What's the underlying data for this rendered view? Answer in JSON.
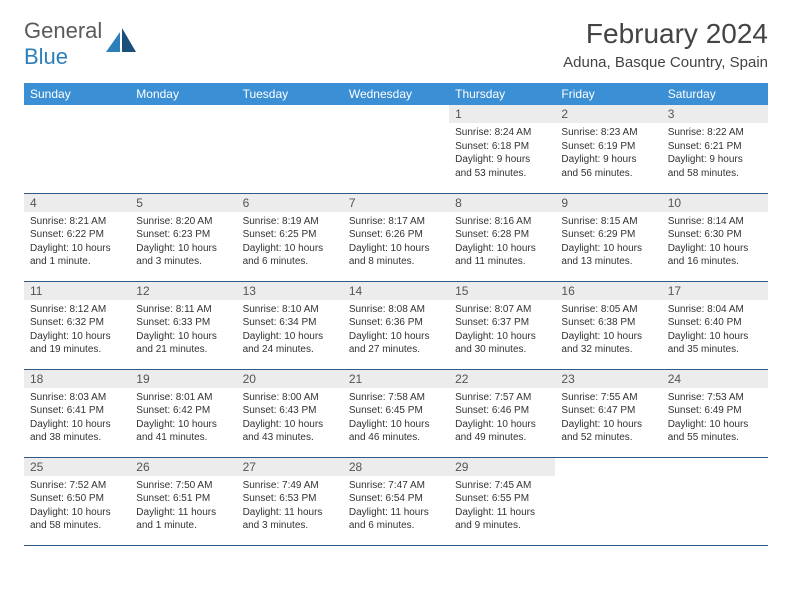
{
  "logo": {
    "text_gray": "General",
    "text_blue": "Blue"
  },
  "header": {
    "month_title": "February 2024",
    "location": "Aduna, Basque Country, Spain"
  },
  "colors": {
    "header_bg": "#3b8fd4",
    "header_text": "#ffffff",
    "daynum_bg": "#ececec",
    "rule": "#2c5a8a",
    "logo_blue": "#2c7fb8",
    "logo_gray": "#5a5a5a"
  },
  "dow": [
    "Sunday",
    "Monday",
    "Tuesday",
    "Wednesday",
    "Thursday",
    "Friday",
    "Saturday"
  ],
  "weeks": [
    [
      null,
      null,
      null,
      null,
      {
        "n": "1",
        "sr": "8:24 AM",
        "ss": "6:18 PM",
        "dl": "9 hours and 53 minutes."
      },
      {
        "n": "2",
        "sr": "8:23 AM",
        "ss": "6:19 PM",
        "dl": "9 hours and 56 minutes."
      },
      {
        "n": "3",
        "sr": "8:22 AM",
        "ss": "6:21 PM",
        "dl": "9 hours and 58 minutes."
      }
    ],
    [
      {
        "n": "4",
        "sr": "8:21 AM",
        "ss": "6:22 PM",
        "dl": "10 hours and 1 minute."
      },
      {
        "n": "5",
        "sr": "8:20 AM",
        "ss": "6:23 PM",
        "dl": "10 hours and 3 minutes."
      },
      {
        "n": "6",
        "sr": "8:19 AM",
        "ss": "6:25 PM",
        "dl": "10 hours and 6 minutes."
      },
      {
        "n": "7",
        "sr": "8:17 AM",
        "ss": "6:26 PM",
        "dl": "10 hours and 8 minutes."
      },
      {
        "n": "8",
        "sr": "8:16 AM",
        "ss": "6:28 PM",
        "dl": "10 hours and 11 minutes."
      },
      {
        "n": "9",
        "sr": "8:15 AM",
        "ss": "6:29 PM",
        "dl": "10 hours and 13 minutes."
      },
      {
        "n": "10",
        "sr": "8:14 AM",
        "ss": "6:30 PM",
        "dl": "10 hours and 16 minutes."
      }
    ],
    [
      {
        "n": "11",
        "sr": "8:12 AM",
        "ss": "6:32 PM",
        "dl": "10 hours and 19 minutes."
      },
      {
        "n": "12",
        "sr": "8:11 AM",
        "ss": "6:33 PM",
        "dl": "10 hours and 21 minutes."
      },
      {
        "n": "13",
        "sr": "8:10 AM",
        "ss": "6:34 PM",
        "dl": "10 hours and 24 minutes."
      },
      {
        "n": "14",
        "sr": "8:08 AM",
        "ss": "6:36 PM",
        "dl": "10 hours and 27 minutes."
      },
      {
        "n": "15",
        "sr": "8:07 AM",
        "ss": "6:37 PM",
        "dl": "10 hours and 30 minutes."
      },
      {
        "n": "16",
        "sr": "8:05 AM",
        "ss": "6:38 PM",
        "dl": "10 hours and 32 minutes."
      },
      {
        "n": "17",
        "sr": "8:04 AM",
        "ss": "6:40 PM",
        "dl": "10 hours and 35 minutes."
      }
    ],
    [
      {
        "n": "18",
        "sr": "8:03 AM",
        "ss": "6:41 PM",
        "dl": "10 hours and 38 minutes."
      },
      {
        "n": "19",
        "sr": "8:01 AM",
        "ss": "6:42 PM",
        "dl": "10 hours and 41 minutes."
      },
      {
        "n": "20",
        "sr": "8:00 AM",
        "ss": "6:43 PM",
        "dl": "10 hours and 43 minutes."
      },
      {
        "n": "21",
        "sr": "7:58 AM",
        "ss": "6:45 PM",
        "dl": "10 hours and 46 minutes."
      },
      {
        "n": "22",
        "sr": "7:57 AM",
        "ss": "6:46 PM",
        "dl": "10 hours and 49 minutes."
      },
      {
        "n": "23",
        "sr": "7:55 AM",
        "ss": "6:47 PM",
        "dl": "10 hours and 52 minutes."
      },
      {
        "n": "24",
        "sr": "7:53 AM",
        "ss": "6:49 PM",
        "dl": "10 hours and 55 minutes."
      }
    ],
    [
      {
        "n": "25",
        "sr": "7:52 AM",
        "ss": "6:50 PM",
        "dl": "10 hours and 58 minutes."
      },
      {
        "n": "26",
        "sr": "7:50 AM",
        "ss": "6:51 PM",
        "dl": "11 hours and 1 minute."
      },
      {
        "n": "27",
        "sr": "7:49 AM",
        "ss": "6:53 PM",
        "dl": "11 hours and 3 minutes."
      },
      {
        "n": "28",
        "sr": "7:47 AM",
        "ss": "6:54 PM",
        "dl": "11 hours and 6 minutes."
      },
      {
        "n": "29",
        "sr": "7:45 AM",
        "ss": "6:55 PM",
        "dl": "11 hours and 9 minutes."
      },
      null,
      null
    ]
  ],
  "labels": {
    "sunrise": "Sunrise: ",
    "sunset": "Sunset: ",
    "daylight": "Daylight: "
  }
}
